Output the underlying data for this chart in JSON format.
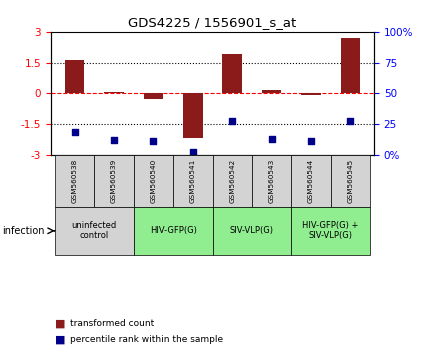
{
  "title": "GDS4225 / 1556901_s_at",
  "samples": [
    "GSM560538",
    "GSM560539",
    "GSM560540",
    "GSM560541",
    "GSM560542",
    "GSM560543",
    "GSM560544",
    "GSM560545"
  ],
  "bar_values": [
    1.6,
    0.05,
    -0.3,
    -2.2,
    1.9,
    0.15,
    -0.1,
    2.7
  ],
  "dot_values": [
    18,
    12,
    11,
    2,
    27,
    13,
    11,
    27
  ],
  "ylim_left": [
    -3,
    3
  ],
  "ylim_right": [
    0,
    100
  ],
  "yticks_left": [
    -3,
    -1.5,
    0,
    1.5,
    3
  ],
  "yticks_right": [
    0,
    25,
    50,
    75,
    100
  ],
  "ytick_labels_right": [
    "0%",
    "25",
    "50",
    "75",
    "100%"
  ],
  "bar_color": "#8B1A1A",
  "dot_color": "#00008B",
  "group_spans": [
    {
      "start": 0,
      "end": 1,
      "label": "uninfected\ncontrol",
      "color": "#d3d3d3"
    },
    {
      "start": 2,
      "end": 3,
      "label": "HIV-GFP(G)",
      "color": "#90EE90"
    },
    {
      "start": 4,
      "end": 5,
      "label": "SIV-VLP(G)",
      "color": "#90EE90"
    },
    {
      "start": 6,
      "end": 7,
      "label": "HIV-GFP(G) +\nSIV-VLP(G)",
      "color": "#90EE90"
    }
  ],
  "legend_bar_label": "transformed count",
  "legend_dot_label": "percentile rank within the sample",
  "infection_label": "infection",
  "sample_bg_color": "#d3d3d3",
  "plot_bg": "#ffffff"
}
